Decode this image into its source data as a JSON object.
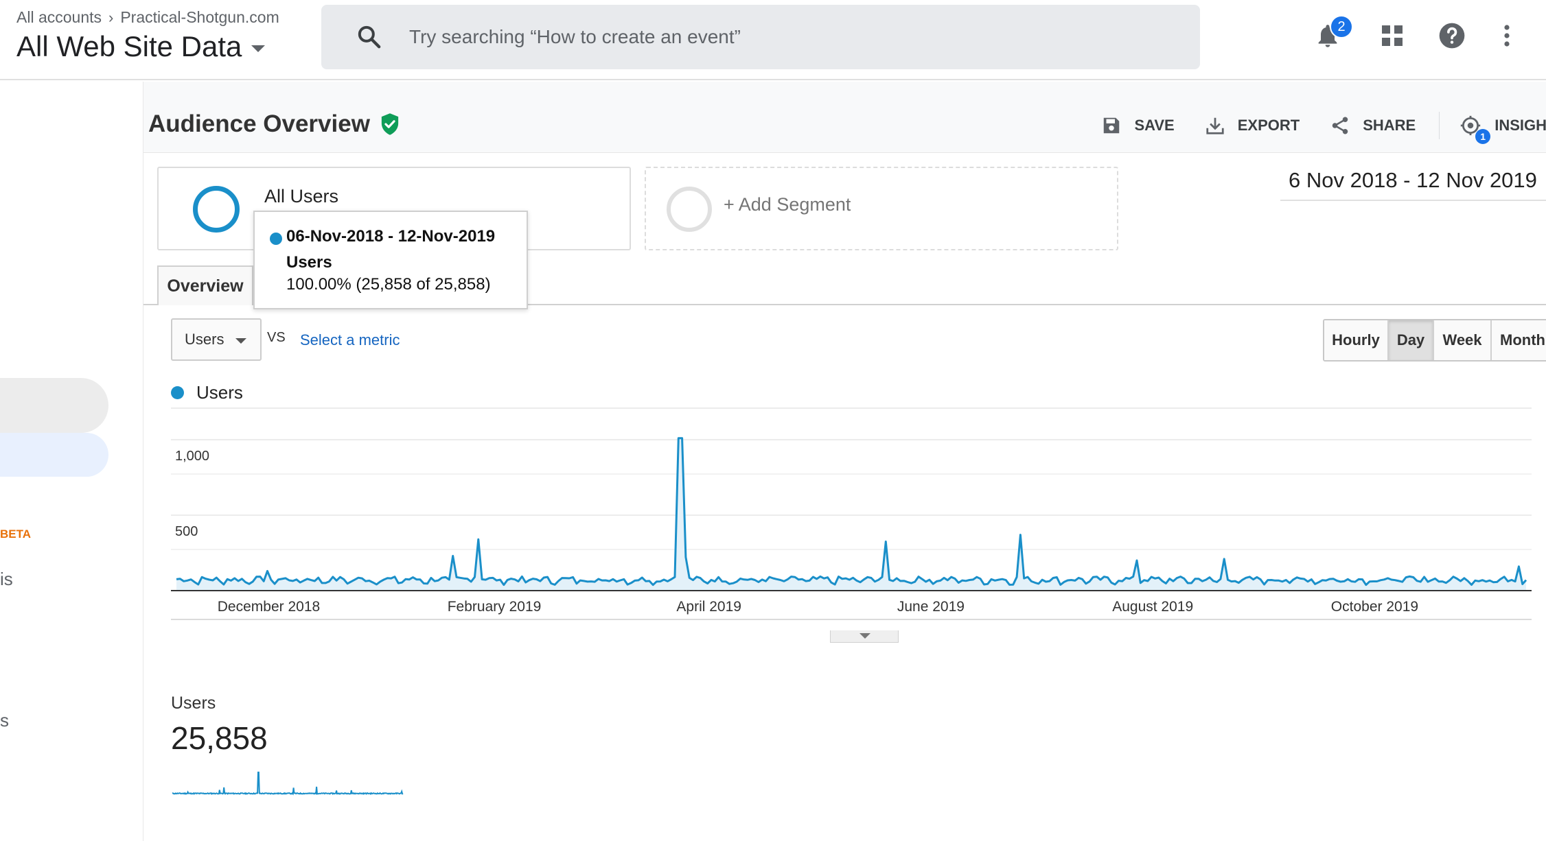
{
  "header": {
    "breadcrumb_root": "All accounts",
    "breadcrumb_account": "Practical-Shotgun.com",
    "property_view": "All Web Site Data",
    "search_placeholder": "Try searching “How to create an event”",
    "notifications_count": "2"
  },
  "sidebar": {
    "beta_label": "BETA",
    "frag_1": "is",
    "frag_2": "s"
  },
  "page": {
    "title": "Audience Overview",
    "actions": {
      "save": "SAVE",
      "export": "EXPORT",
      "share": "SHARE",
      "insights": "INSIGH",
      "insights_badge": "1"
    }
  },
  "segments": {
    "active": "All Users",
    "add": "+ Add Segment"
  },
  "date_range": "6 Nov 2018 - 12 Nov 2019",
  "tabs": {
    "overview": "Overview"
  },
  "tooltip": {
    "date": "06-Nov-2018 - 12-Nov-2019",
    "metric": "Users",
    "value": "100.00% (25,858 of 25,858)"
  },
  "controls": {
    "metric_selected": "Users",
    "vs": "VS",
    "select_metric": "Select a metric",
    "granularity": [
      "Hourly",
      "Day",
      "Week",
      "Month"
    ],
    "granularity_active": "Day"
  },
  "colors": {
    "series": "#1a8fc9",
    "fill": "#e3f1f9",
    "accent": "#1a73e8",
    "verified": "#0f9d58"
  },
  "chart_data": {
    "type": "area",
    "series": [
      {
        "name": "Users"
      }
    ],
    "y_ticks": [
      "1,000",
      "500"
    ],
    "ylim": [
      0,
      1100
    ],
    "x_labels": [
      "December 2018",
      "February 2019",
      "April 2019",
      "June 2019",
      "August 2019",
      "October 2019"
    ],
    "x_range": [
      "2018-11-06",
      "2019-11-12"
    ],
    "baseline": 70,
    "spikes": [
      {
        "date": "2018-12-01",
        "value": 130
      },
      {
        "date": "2019-01-21",
        "value": 230
      },
      {
        "date": "2019-01-28",
        "value": 340
      },
      {
        "date": "2019-03-24",
        "value": 1010
      },
      {
        "date": "2019-03-25",
        "value": 1010
      },
      {
        "date": "2019-05-20",
        "value": 325
      },
      {
        "date": "2019-06-26",
        "value": 370
      },
      {
        "date": "2019-07-28",
        "value": 200
      },
      {
        "date": "2019-08-21",
        "value": 210
      },
      {
        "date": "2019-11-10",
        "value": 160
      }
    ]
  },
  "kpi": {
    "label": "Users",
    "value": "25,858"
  }
}
